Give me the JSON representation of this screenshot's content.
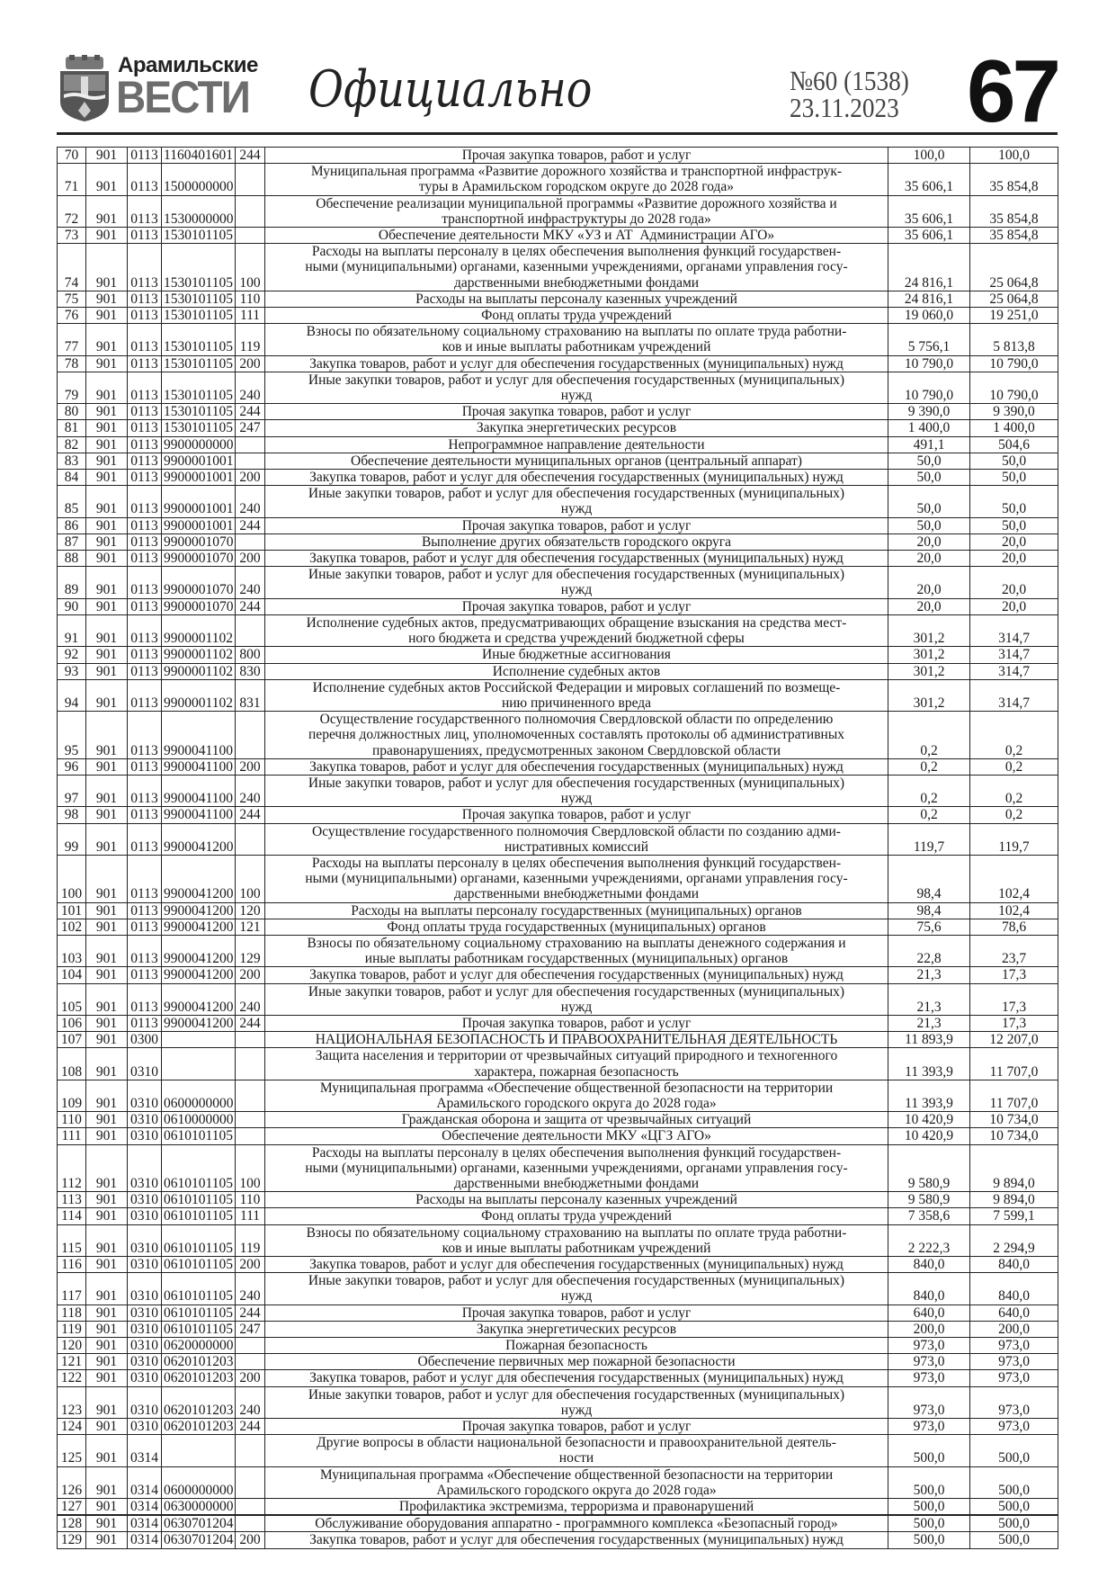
{
  "masthead": {
    "brand_top": "Арамильские",
    "brand_big": "ВЕСТИ",
    "section": "Официально",
    "issue": "№60 (1538)",
    "date": "23.11.2023",
    "page": "67",
    "logo_icon": "coat-of-arms-icon"
  },
  "rows": [
    [
      "70",
      "901",
      "0113",
      "1160401601",
      "244",
      "Прочая закупка товаров, работ и услуг",
      "100,0",
      "100,0"
    ],
    [
      "71",
      "901",
      "0113",
      "1500000000",
      "",
      "Муниципальная программа «Развитие дорожного хозяйства и транспортной инфраструк-\nтуры в Арамильском городском округе до 2028 года»",
      "35 606,1",
      "35 854,8"
    ],
    [
      "72",
      "901",
      "0113",
      "1530000000",
      "",
      "Обеспечение реализации муниципальной программы «Развитие дорожного хозяйства и\nтранспортной инфраструктуры до 2028 года»",
      "35 606,1",
      "35 854,8"
    ],
    [
      "73",
      "901",
      "0113",
      "1530101105",
      "",
      "Обеспечение деятельности МКУ «УЗ и АТ  Администрации АГО»",
      "35 606,1",
      "35 854,8"
    ],
    [
      "74",
      "901",
      "0113",
      "1530101105",
      "100",
      "Расходы на выплаты персоналу в целях обеспечения выполнения функций государствен-\nными (муниципальными) органами, казенными учреждениями, органами управления госу-\nдарственными внебюджетными фондами",
      "24 816,1",
      "25 064,8"
    ],
    [
      "75",
      "901",
      "0113",
      "1530101105",
      "110",
      "Расходы на выплаты персоналу казенных учреждений",
      "24 816,1",
      "25 064,8"
    ],
    [
      "76",
      "901",
      "0113",
      "1530101105",
      "111",
      "Фонд оплаты труда учреждений",
      "19 060,0",
      "19 251,0"
    ],
    [
      "77",
      "901",
      "0113",
      "1530101105",
      "119",
      "Взносы по обязательному социальному страхованию на выплаты по оплате труда работни-\nков и иные выплаты работникам учреждений",
      "5 756,1",
      "5 813,8"
    ],
    [
      "78",
      "901",
      "0113",
      "1530101105",
      "200",
      "Закупка товаров, работ и услуг для обеспечения государственных (муниципальных) нужд",
      "10 790,0",
      "10 790,0"
    ],
    [
      "79",
      "901",
      "0113",
      "1530101105",
      "240",
      "Иные закупки товаров, работ и услуг для обеспечения государственных (муниципальных)\nнужд",
      "10 790,0",
      "10 790,0"
    ],
    [
      "80",
      "901",
      "0113",
      "1530101105",
      "244",
      "Прочая закупка товаров, работ и услуг",
      "9 390,0",
      "9 390,0"
    ],
    [
      "81",
      "901",
      "0113",
      "1530101105",
      "247",
      "Закупка энергетических ресурсов",
      "1 400,0",
      "1 400,0"
    ],
    [
      "82",
      "901",
      "0113",
      "9900000000",
      "",
      "Непрограммное направление деятельности",
      "491,1",
      "504,6"
    ],
    [
      "83",
      "901",
      "0113",
      "9900001001",
      "",
      "Обеспечение деятельности муниципальных органов (центральный аппарат)",
      "50,0",
      "50,0"
    ],
    [
      "84",
      "901",
      "0113",
      "9900001001",
      "200",
      "Закупка товаров, работ и услуг для обеспечения государственных (муниципальных) нужд",
      "50,0",
      "50,0"
    ],
    [
      "85",
      "901",
      "0113",
      "9900001001",
      "240",
      "Иные закупки товаров, работ и услуг для обеспечения государственных (муниципальных)\nнужд",
      "50,0",
      "50,0"
    ],
    [
      "86",
      "901",
      "0113",
      "9900001001",
      "244",
      "Прочая закупка товаров, работ и услуг",
      "50,0",
      "50,0"
    ],
    [
      "87",
      "901",
      "0113",
      "9900001070",
      "",
      "Выполнение других обязательств городского округа",
      "20,0",
      "20,0"
    ],
    [
      "88",
      "901",
      "0113",
      "9900001070",
      "200",
      "Закупка товаров, работ и услуг для обеспечения государственных (муниципальных) нужд",
      "20,0",
      "20,0"
    ],
    [
      "89",
      "901",
      "0113",
      "9900001070",
      "240",
      "Иные закупки товаров, работ и услуг для обеспечения государственных (муниципальных)\nнужд",
      "20,0",
      "20,0"
    ],
    [
      "90",
      "901",
      "0113",
      "9900001070",
      "244",
      "Прочая закупка товаров, работ и услуг",
      "20,0",
      "20,0"
    ],
    [
      "91",
      "901",
      "0113",
      "9900001102",
      "",
      "Исполнение судебных актов, предусматривающих обращение взыскания на средства мест-\nного бюджета и средства учреждений бюджетной сферы",
      "301,2",
      "314,7"
    ],
    [
      "92",
      "901",
      "0113",
      "9900001102",
      "800",
      "Иные бюджетные ассигнования",
      "301,2",
      "314,7"
    ],
    [
      "93",
      "901",
      "0113",
      "9900001102",
      "830",
      "Исполнение судебных актов",
      "301,2",
      "314,7"
    ],
    [
      "94",
      "901",
      "0113",
      "9900001102",
      "831",
      "Исполнение судебных актов Российской Федерации и мировых соглашений по возмеще-\nнию причиненного вреда",
      "301,2",
      "314,7"
    ],
    [
      "95",
      "901",
      "0113",
      "9900041100",
      "",
      "Осуществление государственного полномочия Свердловской области по определению\nперечня должностных лиц, уполномоченных составлять протоколы об административных\nправонарушениях, предусмотренных законом Свердловской области",
      "0,2",
      "0,2"
    ],
    [
      "96",
      "901",
      "0113",
      "9900041100",
      "200",
      "Закупка товаров, работ и услуг для обеспечения государственных (муниципальных) нужд",
      "0,2",
      "0,2"
    ],
    [
      "97",
      "901",
      "0113",
      "9900041100",
      "240",
      "Иные закупки товаров, работ и услуг для обеспечения государственных (муниципальных)\nнужд",
      "0,2",
      "0,2"
    ],
    [
      "98",
      "901",
      "0113",
      "9900041100",
      "244",
      "Прочая закупка товаров, работ и услуг",
      "0,2",
      "0,2"
    ],
    [
      "99",
      "901",
      "0113",
      "9900041200",
      "",
      "Осуществление государственного полномочия Свердловской области по созданию адми-\nнистративных комиссий",
      "119,7",
      "119,7"
    ],
    [
      "100",
      "901",
      "0113",
      "9900041200",
      "100",
      "Расходы на выплаты персоналу в целях обеспечения выполнения функций государствен-\nными (муниципальными) органами, казенными учреждениями, органами управления госу-\nдарственными внебюджетными фондами",
      "98,4",
      "102,4"
    ],
    [
      "101",
      "901",
      "0113",
      "9900041200",
      "120",
      "Расходы на выплаты персоналу государственных (муниципальных) органов",
      "98,4",
      "102,4"
    ],
    [
      "102",
      "901",
      "0113",
      "9900041200",
      "121",
      "Фонд оплаты труда государственных (муниципальных) органов",
      "75,6",
      "78,6"
    ],
    [
      "103",
      "901",
      "0113",
      "9900041200",
      "129",
      "Взносы по обязательному социальному страхованию на выплаты денежного содержания и\nиные выплаты работникам государственных (муниципальных) органов",
      "22,8",
      "23,7"
    ],
    [
      "104",
      "901",
      "0113",
      "9900041200",
      "200",
      "Закупка товаров, работ и услуг для обеспечения государственных (муниципальных) нужд",
      "21,3",
      "17,3"
    ],
    [
      "105",
      "901",
      "0113",
      "9900041200",
      "240",
      "Иные закупки товаров, работ и услуг для обеспечения государственных (муниципальных)\nнужд",
      "21,3",
      "17,3"
    ],
    [
      "106",
      "901",
      "0113",
      "9900041200",
      "244",
      "Прочая закупка товаров, работ и услуг",
      "21,3",
      "17,3"
    ],
    [
      "107",
      "901",
      "0300",
      "",
      "",
      "НАЦИОНАЛЬНАЯ БЕЗОПАСНОСТЬ И ПРАВООХРАНИТЕЛЬНАЯ ДЕЯТЕЛЬНОСТЬ",
      "11 893,9",
      "12 207,0"
    ],
    [
      "108",
      "901",
      "0310",
      "",
      "",
      "Защита населения и территории от чрезвычайных ситуаций природного и техногенного\nхарактера, пожарная безопасность",
      "11 393,9",
      "11 707,0"
    ],
    [
      "109",
      "901",
      "0310",
      "0600000000",
      "",
      "Муниципальная программа «Обеспечение общественной безопасности на территории\nАрамильского городского округа до 2028 года»",
      "11 393,9",
      "11 707,0"
    ],
    [
      "110",
      "901",
      "0310",
      "0610000000",
      "",
      "Гражданская оборона и защита от чрезвычайных ситуаций",
      "10 420,9",
      "10 734,0"
    ],
    [
      "111",
      "901",
      "0310",
      "0610101105",
      "",
      "Обеспечение деятельности МКУ «ЦГЗ АГО»",
      "10 420,9",
      "10 734,0"
    ],
    [
      "112",
      "901",
      "0310",
      "0610101105",
      "100",
      "Расходы на выплаты персоналу в целях обеспечения выполнения функций государствен-\nными (муниципальными) органами, казенными учреждениями, органами управления госу-\nдарственными внебюджетными фондами",
      "9 580,9",
      "9 894,0"
    ],
    [
      "113",
      "901",
      "0310",
      "0610101105",
      "110",
      "Расходы на выплаты персоналу казенных учреждений",
      "9 580,9",
      "9 894,0"
    ],
    [
      "114",
      "901",
      "0310",
      "0610101105",
      "111",
      "Фонд оплаты труда учреждений",
      "7 358,6",
      "7 599,1"
    ],
    [
      "115",
      "901",
      "0310",
      "0610101105",
      "119",
      "Взносы по обязательному социальному страхованию на выплаты по оплате труда работни-\nков и иные выплаты работникам учреждений",
      "2 222,3",
      "2 294,9"
    ],
    [
      "116",
      "901",
      "0310",
      "0610101105",
      "200",
      "Закупка товаров, работ и услуг для обеспечения государственных (муниципальных) нужд",
      "840,0",
      "840,0"
    ],
    [
      "117",
      "901",
      "0310",
      "0610101105",
      "240",
      "Иные закупки товаров, работ и услуг для обеспечения государственных (муниципальных)\nнужд",
      "840,0",
      "840,0"
    ],
    [
      "118",
      "901",
      "0310",
      "0610101105",
      "244",
      "Прочая закупка товаров, работ и услуг",
      "640,0",
      "640,0"
    ],
    [
      "119",
      "901",
      "0310",
      "0610101105",
      "247",
      "Закупка энергетических ресурсов",
      "200,0",
      "200,0"
    ],
    [
      "120",
      "901",
      "0310",
      "0620000000",
      "",
      "Пожарная безопасность",
      "973,0",
      "973,0"
    ],
    [
      "121",
      "901",
      "0310",
      "0620101203",
      "",
      "Обеспечение первичных мер пожарной безопасности",
      "973,0",
      "973,0"
    ],
    [
      "122",
      "901",
      "0310",
      "0620101203",
      "200",
      "Закупка товаров, работ и услуг для обеспечения государственных (муниципальных) нужд",
      "973,0",
      "973,0"
    ],
    [
      "123",
      "901",
      "0310",
      "0620101203",
      "240",
      "Иные закупки товаров, работ и услуг для обеспечения государственных (муниципальных)\nнужд",
      "973,0",
      "973,0"
    ],
    [
      "124",
      "901",
      "0310",
      "0620101203",
      "244",
      "Прочая закупка товаров, работ и услуг",
      "973,0",
      "973,0"
    ],
    [
      "125",
      "901",
      "0314",
      "",
      "",
      "Другие вопросы в области национальной безопасности и правоохранительной деятель-\nности",
      "500,0",
      "500,0"
    ],
    [
      "126",
      "901",
      "0314",
      "0600000000",
      "",
      "Муниципальная программа «Обеспечение общественной безопасности на территории\nАрамильского городского округа до 2028 года»",
      "500,0",
      "500,0"
    ],
    [
      "127",
      "901",
      "0314",
      "0630000000",
      "",
      "Профилактика экстремизма, терроризма и правонарушений",
      "500,0",
      "500,0"
    ],
    [
      "128",
      "901",
      "0314",
      "0630701204",
      "",
      "Обслуживание оборудования аппаратно - программного комплекса «Безопасный город»",
      "500,0",
      "500,0"
    ],
    [
      "129",
      "901",
      "0314",
      "0630701204",
      "200",
      "Закупка товаров, работ и услуг для обеспечения государственных (муниципальных) нужд",
      "500,0",
      "500,0"
    ]
  ]
}
